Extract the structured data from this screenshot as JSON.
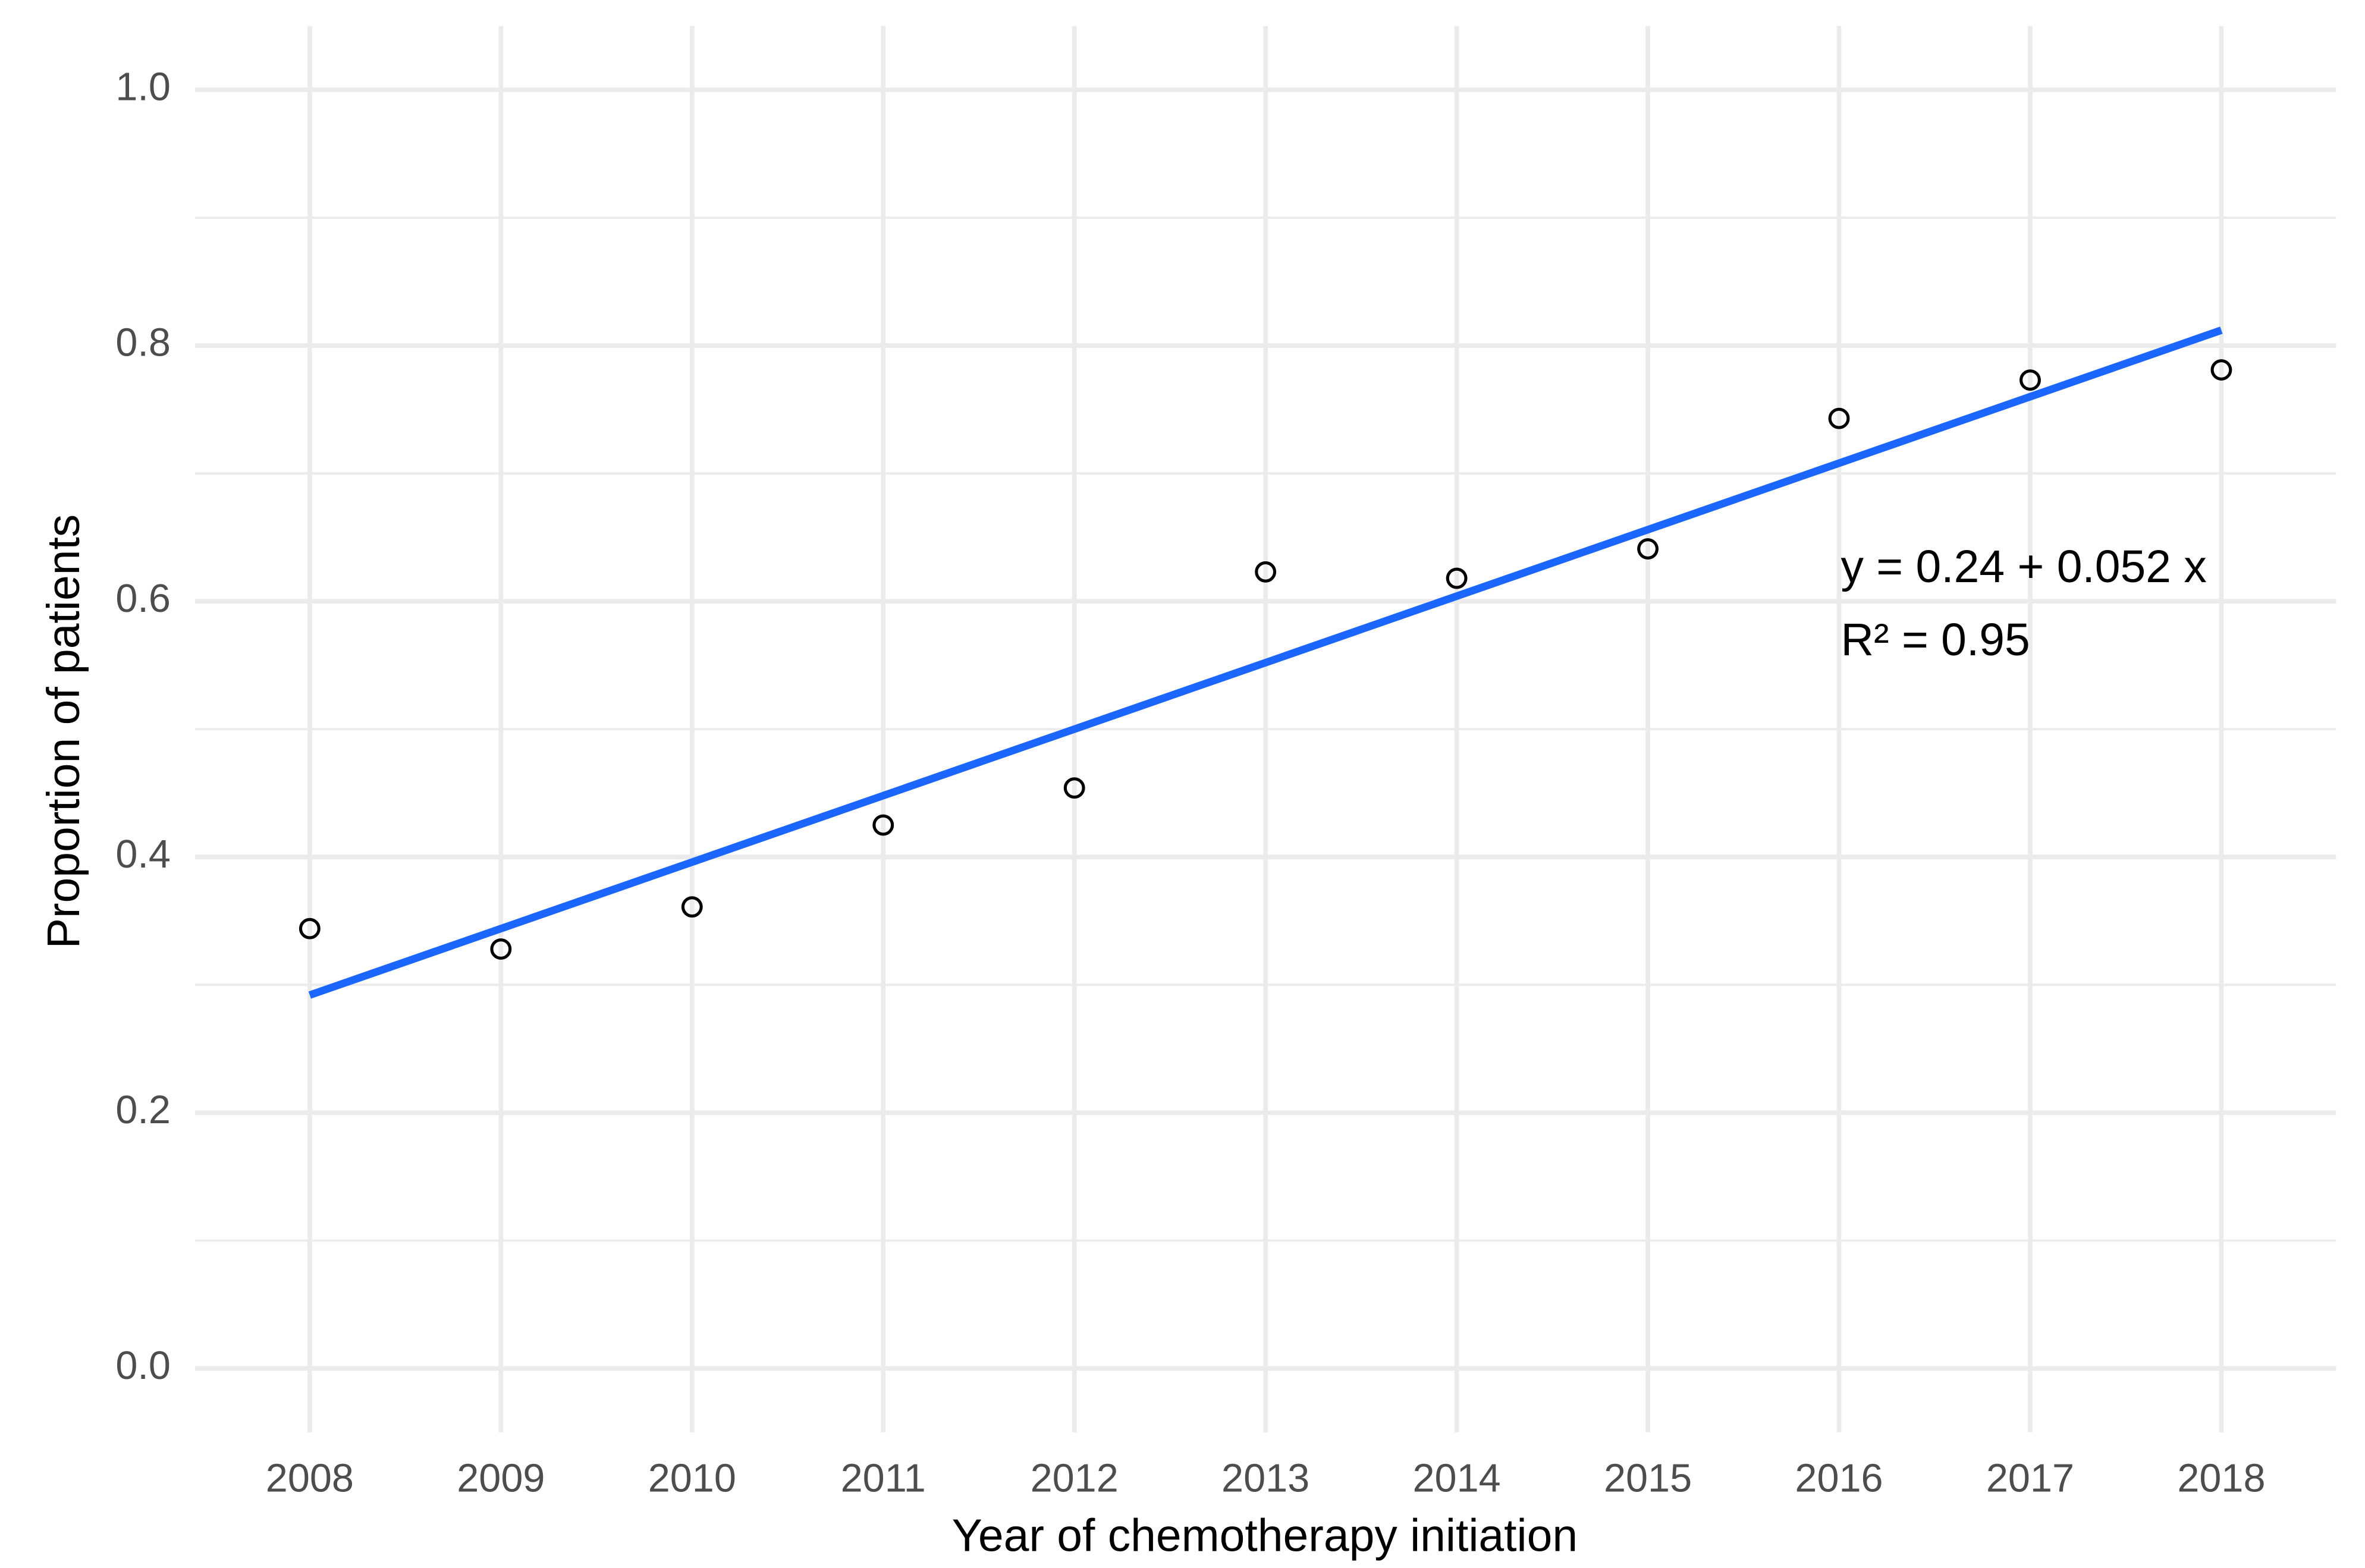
{
  "chart_data": {
    "type": "scatter",
    "x_label": "Year of chemotherapy initiation",
    "y_label": "Proportion of patients",
    "x": [
      2008,
      2009,
      2010,
      2011,
      2012,
      2013,
      2014,
      2015,
      2016,
      2017,
      2018
    ],
    "series": [
      {
        "color": "#000000",
        "marker": "open-circle",
        "values": [
          0.344,
          0.328,
          0.361,
          0.425,
          0.454,
          0.623,
          0.618,
          0.641,
          0.743,
          0.773,
          0.781
        ]
      }
    ],
    "fit_line": {
      "color": "#1a66ff",
      "x": [
        2008,
        2018
      ],
      "values": [
        0.292,
        0.812
      ]
    },
    "annotations": [
      "y = 0.24 + 0.052 x",
      "R² = 0.95"
    ],
    "xlim": [
      2007.4,
      2018.6
    ],
    "xticks": [
      2008,
      2009,
      2010,
      2011,
      2012,
      2013,
      2014,
      2015,
      2016,
      2017,
      2018
    ],
    "ylim": [
      -0.05,
      1.05
    ],
    "yticks": [
      {
        "value": 0,
        "label": "0.0"
      },
      0.2,
      0.4,
      0.6,
      0.8,
      {
        "value": 1,
        "label": "1.0"
      }
    ],
    "minor_yticks": [
      0.1,
      0.3,
      0.5,
      0.7,
      0.9
    ],
    "grid": true
  }
}
